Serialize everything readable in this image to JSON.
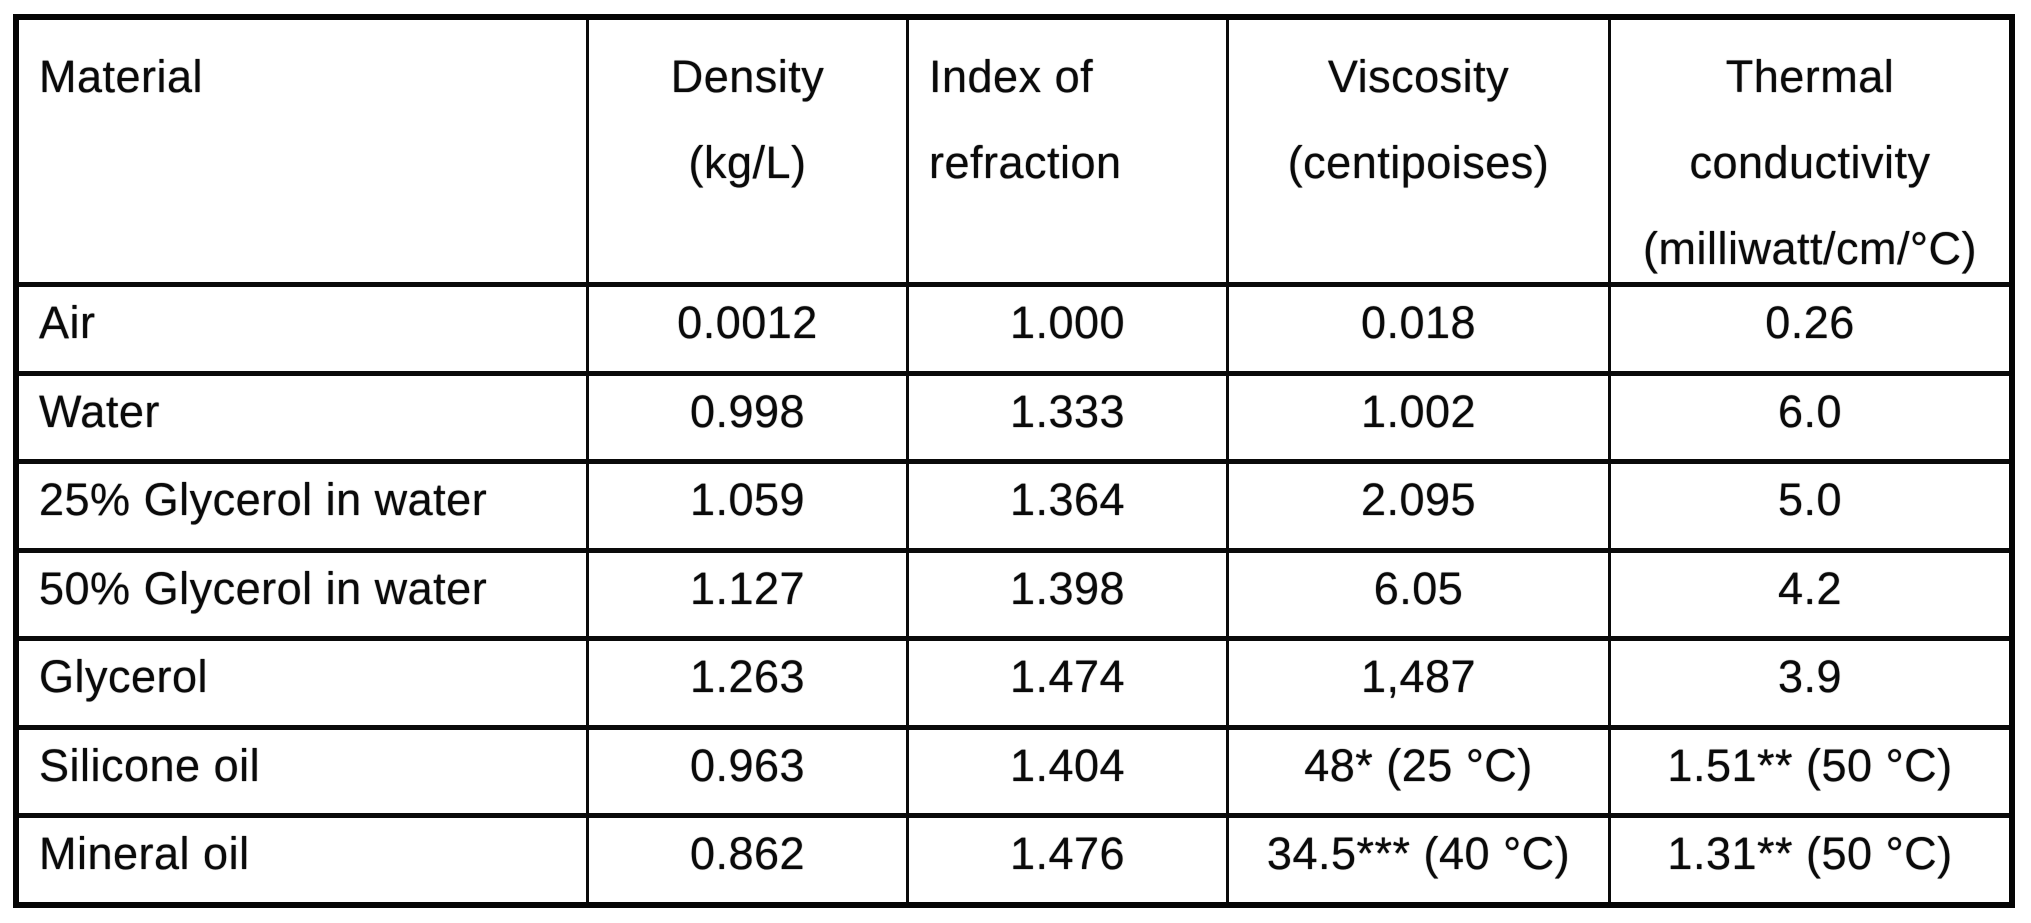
{
  "table": {
    "border_color": "#050505",
    "text_color": "#0a0a0a",
    "header": {
      "material": [
        "Material"
      ],
      "density": [
        "Density",
        "(kg/L)"
      ],
      "refraction": [
        "Index of",
        "refraction"
      ],
      "viscosity": [
        "Viscosity",
        "(centipoises)"
      ],
      "thermal": [
        "Thermal",
        "conductivity",
        "(milliwatt/cm/°C)"
      ]
    },
    "rows": [
      {
        "material": "Air",
        "density": "0.0012",
        "refraction": "1.000",
        "viscosity": "0.018",
        "thermal": "0.26"
      },
      {
        "material": "Water",
        "density": "0.998",
        "refraction": "1.333",
        "viscosity": "1.002",
        "thermal": "6.0"
      },
      {
        "material": "25% Glycerol in water",
        "density": "1.059",
        "refraction": "1.364",
        "viscosity": "2.095",
        "thermal": "5.0"
      },
      {
        "material": "50% Glycerol in water",
        "density": "1.127",
        "refraction": "1.398",
        "viscosity": "6.05",
        "thermal": "4.2"
      },
      {
        "material": "Glycerol",
        "density": "1.263",
        "refraction": "1.474",
        "viscosity": "1,487",
        "thermal": "3.9"
      },
      {
        "material": "Silicone oil",
        "density": "0.963",
        "refraction": "1.404",
        "viscosity": "48* (25 °C)",
        "thermal": "1.51** (50 °C)"
      },
      {
        "material": "Mineral oil",
        "density": "0.862",
        "refraction": "1.476",
        "viscosity": "34.5*** (40 °C)",
        "thermal": "1.31** (50 °C)"
      }
    ]
  }
}
